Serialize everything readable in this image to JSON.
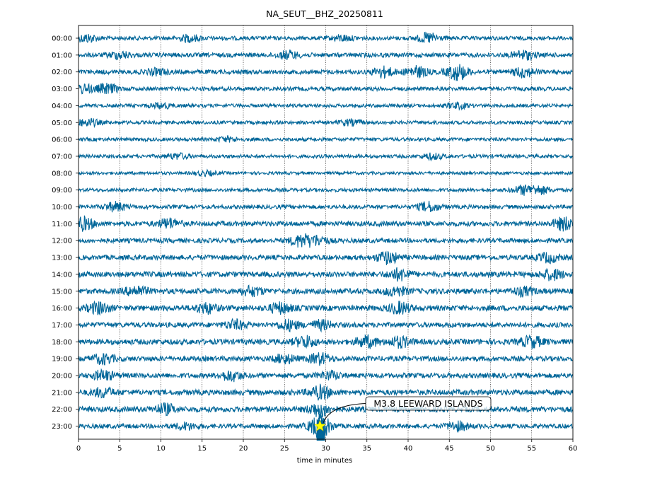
{
  "chart_data": {
    "type": "line",
    "title": "NA_SEUT__BHZ_20250811",
    "xlabel": "time in minutes",
    "ylabel": "",
    "xlim": [
      0,
      60
    ],
    "xticks": [
      0,
      5,
      10,
      15,
      20,
      25,
      30,
      35,
      40,
      45,
      50,
      55,
      60
    ],
    "grid": "vertical dotted lines every 5 minutes",
    "trace_color": "#006699",
    "row_labels": [
      "00:00",
      "01:00",
      "02:00",
      "03:00",
      "04:00",
      "05:00",
      "06:00",
      "07:00",
      "08:00",
      "09:00",
      "10:00",
      "11:00",
      "12:00",
      "13:00",
      "14:00",
      "15:00",
      "16:00",
      "17:00",
      "18:00",
      "19:00",
      "20:00",
      "21:00",
      "22:00",
      "23:00"
    ],
    "rows": [
      {
        "hour": "00:00",
        "amplitude": 0.4,
        "bursts": [
          [
            1,
            0.7
          ],
          [
            13.5,
            0.6
          ],
          [
            32,
            0.5
          ],
          [
            42.5,
            0.9
          ]
        ]
      },
      {
        "hour": "01:00",
        "amplitude": 0.45,
        "bursts": [
          [
            5,
            0.6
          ],
          [
            25.5,
            0.7
          ],
          [
            54,
            0.8
          ]
        ]
      },
      {
        "hour": "02:00",
        "amplitude": 0.45,
        "bursts": [
          [
            9.5,
            0.5
          ],
          [
            37,
            0.9
          ],
          [
            41,
            1.0
          ],
          [
            46,
            1.5
          ],
          [
            54,
            0.9
          ]
        ]
      },
      {
        "hour": "03:00",
        "amplitude": 0.4,
        "bursts": [
          [
            0.5,
            0.8
          ],
          [
            3.5,
            0.9
          ]
        ]
      },
      {
        "hour": "04:00",
        "amplitude": 0.35,
        "bursts": [
          [
            10,
            0.5
          ],
          [
            46,
            0.5
          ]
        ]
      },
      {
        "hour": "05:00",
        "amplitude": 0.35,
        "bursts": [
          [
            1.2,
            0.7
          ],
          [
            33,
            0.5
          ]
        ]
      },
      {
        "hour": "06:00",
        "amplitude": 0.35,
        "bursts": [
          [
            18,
            0.4
          ]
        ]
      },
      {
        "hour": "07:00",
        "amplitude": 0.35,
        "bursts": [
          [
            12,
            0.5
          ],
          [
            43,
            0.5
          ]
        ]
      },
      {
        "hour": "08:00",
        "amplitude": 0.3,
        "bursts": [
          [
            15.5,
            0.4
          ]
        ]
      },
      {
        "hour": "09:00",
        "amplitude": 0.35,
        "bursts": [
          [
            54,
            0.8
          ],
          [
            56,
            0.7
          ]
        ]
      },
      {
        "hour": "10:00",
        "amplitude": 0.4,
        "bursts": [
          [
            4.5,
            0.8
          ],
          [
            42.5,
            0.9
          ]
        ]
      },
      {
        "hour": "11:00",
        "amplitude": 0.5,
        "bursts": [
          [
            0.5,
            1.2
          ],
          [
            11,
            0.9
          ],
          [
            59,
            1.2
          ]
        ]
      },
      {
        "hour": "12:00",
        "amplitude": 0.45,
        "bursts": [
          [
            27,
            1.1
          ],
          [
            29,
            0.8
          ]
        ]
      },
      {
        "hour": "13:00",
        "amplitude": 0.5,
        "bursts": [
          [
            37.5,
            1.1
          ],
          [
            57,
            0.8
          ]
        ]
      },
      {
        "hour": "14:00",
        "amplitude": 0.55,
        "bursts": [
          [
            39,
            1.0
          ],
          [
            57.5,
            0.9
          ]
        ]
      },
      {
        "hour": "15:00",
        "amplitude": 0.55,
        "bursts": [
          [
            7,
            0.9
          ],
          [
            21,
            0.8
          ],
          [
            38.5,
            0.8
          ],
          [
            54,
            0.7
          ]
        ]
      },
      {
        "hour": "16:00",
        "amplitude": 0.55,
        "bursts": [
          [
            2.5,
            1.0
          ],
          [
            15.5,
            0.9
          ],
          [
            24.5,
            0.9
          ],
          [
            39,
            1.0
          ]
        ]
      },
      {
        "hour": "17:00",
        "amplitude": 0.5,
        "bursts": [
          [
            19,
            0.8
          ],
          [
            25.5,
            0.9
          ],
          [
            29.5,
            0.8
          ]
        ]
      },
      {
        "hour": "18:00",
        "amplitude": 0.55,
        "bursts": [
          [
            27.5,
            1.0
          ],
          [
            35,
            1.0
          ],
          [
            39,
            0.9
          ],
          [
            55,
            1.0
          ]
        ]
      },
      {
        "hour": "19:00",
        "amplitude": 0.5,
        "bursts": [
          [
            3,
            0.9
          ],
          [
            25,
            0.8
          ],
          [
            29.3,
            1.0
          ]
        ]
      },
      {
        "hour": "20:00",
        "amplitude": 0.5,
        "bursts": [
          [
            3,
            0.9
          ],
          [
            18.5,
            0.9
          ],
          [
            30.5,
            0.7
          ]
        ]
      },
      {
        "hour": "21:00",
        "amplitude": 0.55,
        "bursts": [
          [
            3,
            0.8
          ],
          [
            29.3,
            1.2
          ]
        ]
      },
      {
        "hour": "22:00",
        "amplitude": 0.55,
        "bursts": [
          [
            10.5,
            0.9
          ],
          [
            29.3,
            1.4
          ]
        ]
      },
      {
        "hour": "23:00",
        "amplitude": 0.45,
        "bursts": [
          [
            13,
            0.6
          ],
          [
            29.3,
            2.2
          ],
          [
            46,
            0.8
          ]
        ]
      }
    ],
    "event": {
      "label": "M3.8 LEEWARD ISLANDS",
      "hour": "23:00",
      "minute": 29.3,
      "marker": "star",
      "marker_color": "#ffff00"
    }
  }
}
